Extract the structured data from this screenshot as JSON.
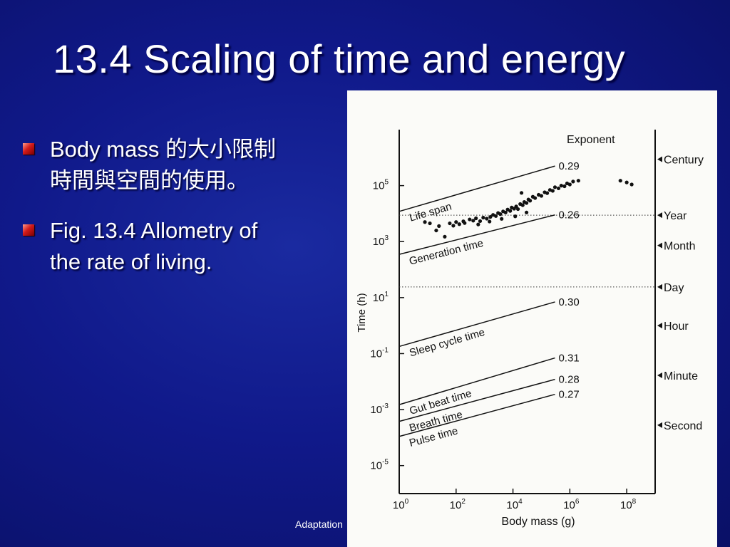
{
  "slide": {
    "title": "13.4 Scaling of time and energy",
    "bullets": [
      {
        "lines": [
          [
            {
              "t": "Body mass ",
              "cjk": false
            },
            {
              "t": "的大小限制",
              "cjk": true
            }
          ],
          [
            {
              "t": "時間與空間的使用。",
              "cjk": true
            }
          ]
        ]
      },
      {
        "lines": [
          [
            {
              "t": "Fig. 13.4 Allometry of",
              "cjk": false
            }
          ],
          [
            {
              "t": "the rate of living.",
              "cjk": false
            }
          ]
        ]
      }
    ],
    "footer": "Adaptation"
  },
  "chart_data": {
    "type": "scatter",
    "xscale": "log",
    "yscale": "log",
    "xlabel": "Body mass (g)",
    "ylabel": "Time (h)",
    "xlim": [
      1,
      1000000000
    ],
    "ylim": [
      1e-06,
      10000000
    ],
    "xticks": [
      {
        "value": 1,
        "base": "10",
        "exp": "0"
      },
      {
        "value": 100,
        "base": "10",
        "exp": "2"
      },
      {
        "value": 10000,
        "base": "10",
        "exp": "4"
      },
      {
        "value": 1000000,
        "base": "10",
        "exp": "6"
      },
      {
        "value": 100000000,
        "base": "10",
        "exp": "8"
      }
    ],
    "yticks": [
      {
        "value": 100000,
        "base": "10",
        "exp": "5"
      },
      {
        "value": 1000,
        "base": "10",
        "exp": "3"
      },
      {
        "value": 10,
        "base": "10",
        "exp": "1"
      },
      {
        "value": 0.1,
        "base": "10",
        "exp": "-1"
      },
      {
        "value": 0.001,
        "base": "10",
        "exp": "-3"
      },
      {
        "value": 1e-05,
        "base": "10",
        "exp": "-5"
      }
    ],
    "exponent_header": "Exponent",
    "lines": [
      {
        "name": "Life span",
        "exponent": "0.29",
        "x": [
          1,
          300000
        ],
        "y": [
          12000,
          500000
        ]
      },
      {
        "name": "Generation time",
        "exponent": "0.26",
        "x": [
          1,
          300000
        ],
        "y": [
          350,
          9000
        ]
      },
      {
        "name": "Sleep cycle time",
        "exponent": "0.30",
        "x": [
          1,
          300000
        ],
        "y": [
          0.18,
          7
        ]
      },
      {
        "name": "Gut beat time",
        "exponent": "0.31",
        "x": [
          1,
          300000
        ],
        "y": [
          0.0015,
          0.07
        ]
      },
      {
        "name": "Breath time",
        "exponent": "0.28",
        "x": [
          1,
          300000
        ],
        "y": [
          0.00038,
          0.012
        ]
      },
      {
        "name": "Pulse time",
        "exponent": "0.27",
        "x": [
          1,
          300000
        ],
        "y": [
          0.00011,
          0.0035
        ]
      }
    ],
    "references": [
      {
        "label": "Century",
        "value": 876000,
        "dotted": false
      },
      {
        "label": "Year",
        "value": 8760,
        "dotted": true
      },
      {
        "label": "Month",
        "value": 730,
        "dotted": false
      },
      {
        "label": "Day",
        "value": 24,
        "dotted": true
      },
      {
        "label": "Hour",
        "value": 1,
        "dotted": false
      },
      {
        "label": "Minute",
        "value": 0.0167,
        "dotted": false
      },
      {
        "label": "Second",
        "value": 0.000278,
        "dotted": false
      }
    ],
    "points": [
      [
        8,
        5000
      ],
      [
        12,
        4500
      ],
      [
        20,
        2500
      ],
      [
        40,
        1500
      ],
      [
        25,
        3600
      ],
      [
        60,
        4500
      ],
      [
        80,
        3700
      ],
      [
        100,
        5000
      ],
      [
        130,
        4200
      ],
      [
        180,
        5300
      ],
      [
        200,
        4600
      ],
      [
        300,
        6200
      ],
      [
        400,
        5600
      ],
      [
        500,
        6800
      ],
      [
        700,
        5400
      ],
      [
        900,
        7200
      ],
      [
        1200,
        6600
      ],
      [
        1600,
        7600
      ],
      [
        2000,
        9000
      ],
      [
        2500,
        8200
      ],
      [
        3000,
        10500
      ],
      [
        3600,
        9600
      ],
      [
        4500,
        12000
      ],
      [
        5500,
        11000
      ],
      [
        6500,
        14000
      ],
      [
        8000,
        12500
      ],
      [
        9000,
        16500
      ],
      [
        11000,
        15000
      ],
      [
        13000,
        18000
      ],
      [
        15000,
        14500
      ],
      [
        18000,
        22000
      ],
      [
        22000,
        20000
      ],
      [
        25000,
        26000
      ],
      [
        30000,
        24000
      ],
      [
        35000,
        32000
      ],
      [
        40000,
        29000
      ],
      [
        50000,
        40000
      ],
      [
        60000,
        36000
      ],
      [
        80000,
        47000
      ],
      [
        100000,
        43000
      ],
      [
        130000,
        58000
      ],
      [
        160000,
        54000
      ],
      [
        200000,
        70000
      ],
      [
        250000,
        65000
      ],
      [
        300000,
        88000
      ],
      [
        400000,
        80000
      ],
      [
        500000,
        100000
      ],
      [
        650000,
        95000
      ],
      [
        800000,
        120000
      ],
      [
        1000000,
        110000
      ],
      [
        1300000,
        140000
      ],
      [
        2000000,
        150000
      ],
      [
        20000,
        55000
      ],
      [
        12000,
        8000
      ],
      [
        4000,
        6500
      ],
      [
        1500,
        5200
      ],
      [
        600,
        4100
      ],
      [
        60000000,
        150000
      ],
      [
        100000000,
        130000
      ],
      [
        150000000,
        110000
      ],
      [
        30000,
        11000
      ]
    ]
  }
}
